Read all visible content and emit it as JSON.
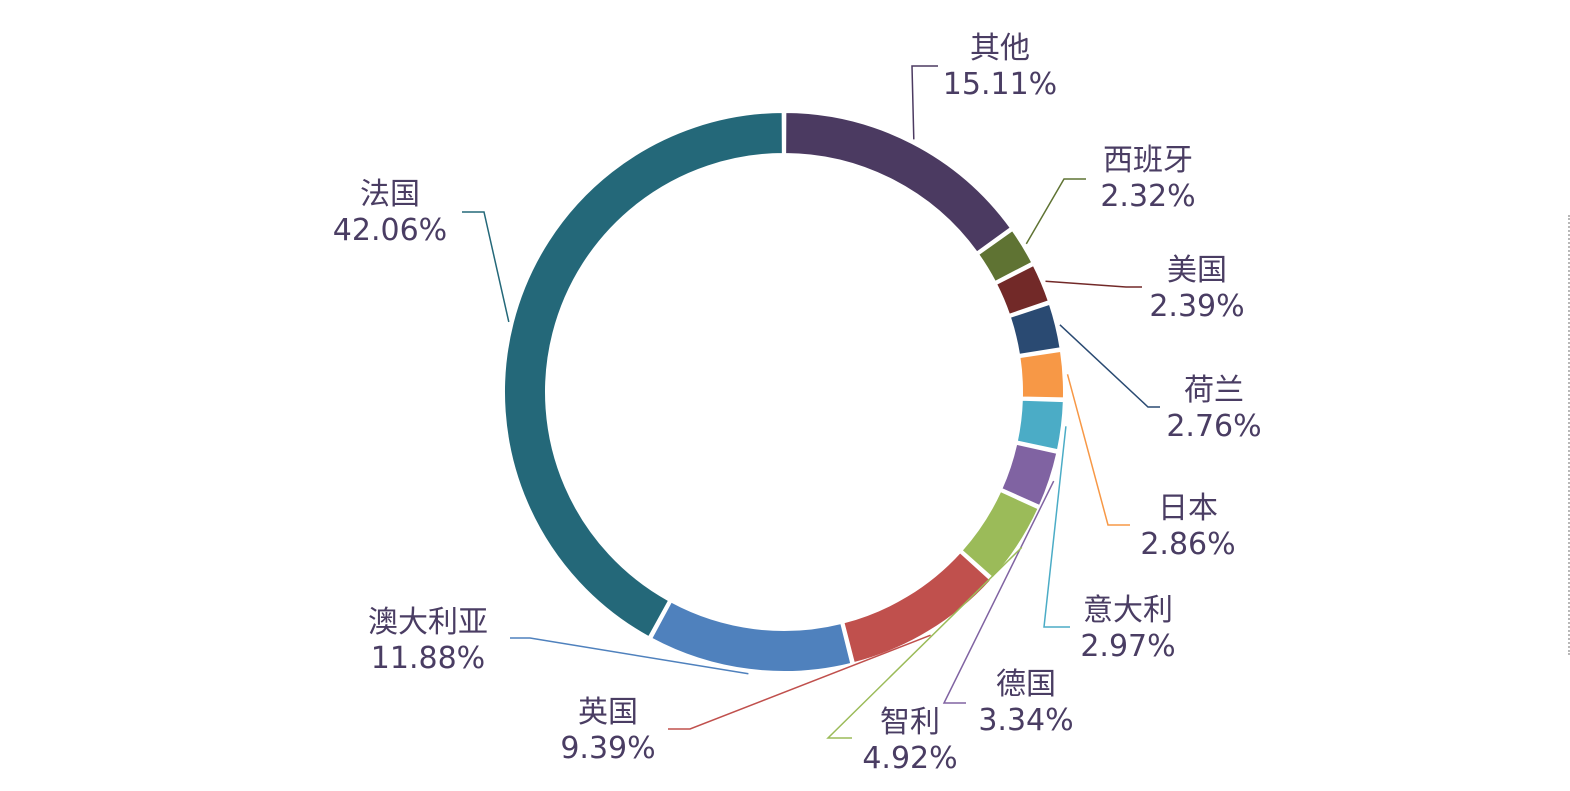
{
  "chart_data": {
    "type": "pie",
    "variant": "donut",
    "title": "",
    "legend": "none",
    "series": [
      {
        "slices": [
          {
            "label": "其他",
            "value": 15.11,
            "pct_label": "15.11%",
            "color": "#4b3a61"
          },
          {
            "label": "西班牙",
            "value": 2.32,
            "pct_label": "2.32%",
            "color": "#5f7333"
          },
          {
            "label": "美国",
            "value": 2.39,
            "pct_label": "2.39%",
            "color": "#722928"
          },
          {
            "label": "荷兰",
            "value": 2.76,
            "pct_label": "2.76%",
            "color": "#2a4a72"
          },
          {
            "label": "日本",
            "value": 2.86,
            "pct_label": "2.86%",
            "color": "#f79846"
          },
          {
            "label": "意大利",
            "value": 2.97,
            "pct_label": "2.97%",
            "color": "#4bacc6"
          },
          {
            "label": "德国",
            "value": 3.34,
            "pct_label": "3.34%",
            "color": "#8063a2"
          },
          {
            "label": "智利",
            "value": 4.92,
            "pct_label": "4.92%",
            "color": "#9bbb59"
          },
          {
            "label": "英国",
            "value": 9.39,
            "pct_label": "9.39%",
            "color": "#c0504d"
          },
          {
            "label": "澳大利亚",
            "value": 11.88,
            "pct_label": "11.88%",
            "color": "#4f81bd"
          },
          {
            "label": "法国",
            "value": 42.06,
            "pct_label": "42.06%",
            "color": "#246879"
          }
        ]
      }
    ],
    "start_angle": "12 o'clock",
    "direction": "clockwise",
    "label_text_color": "#4a3d63"
  }
}
